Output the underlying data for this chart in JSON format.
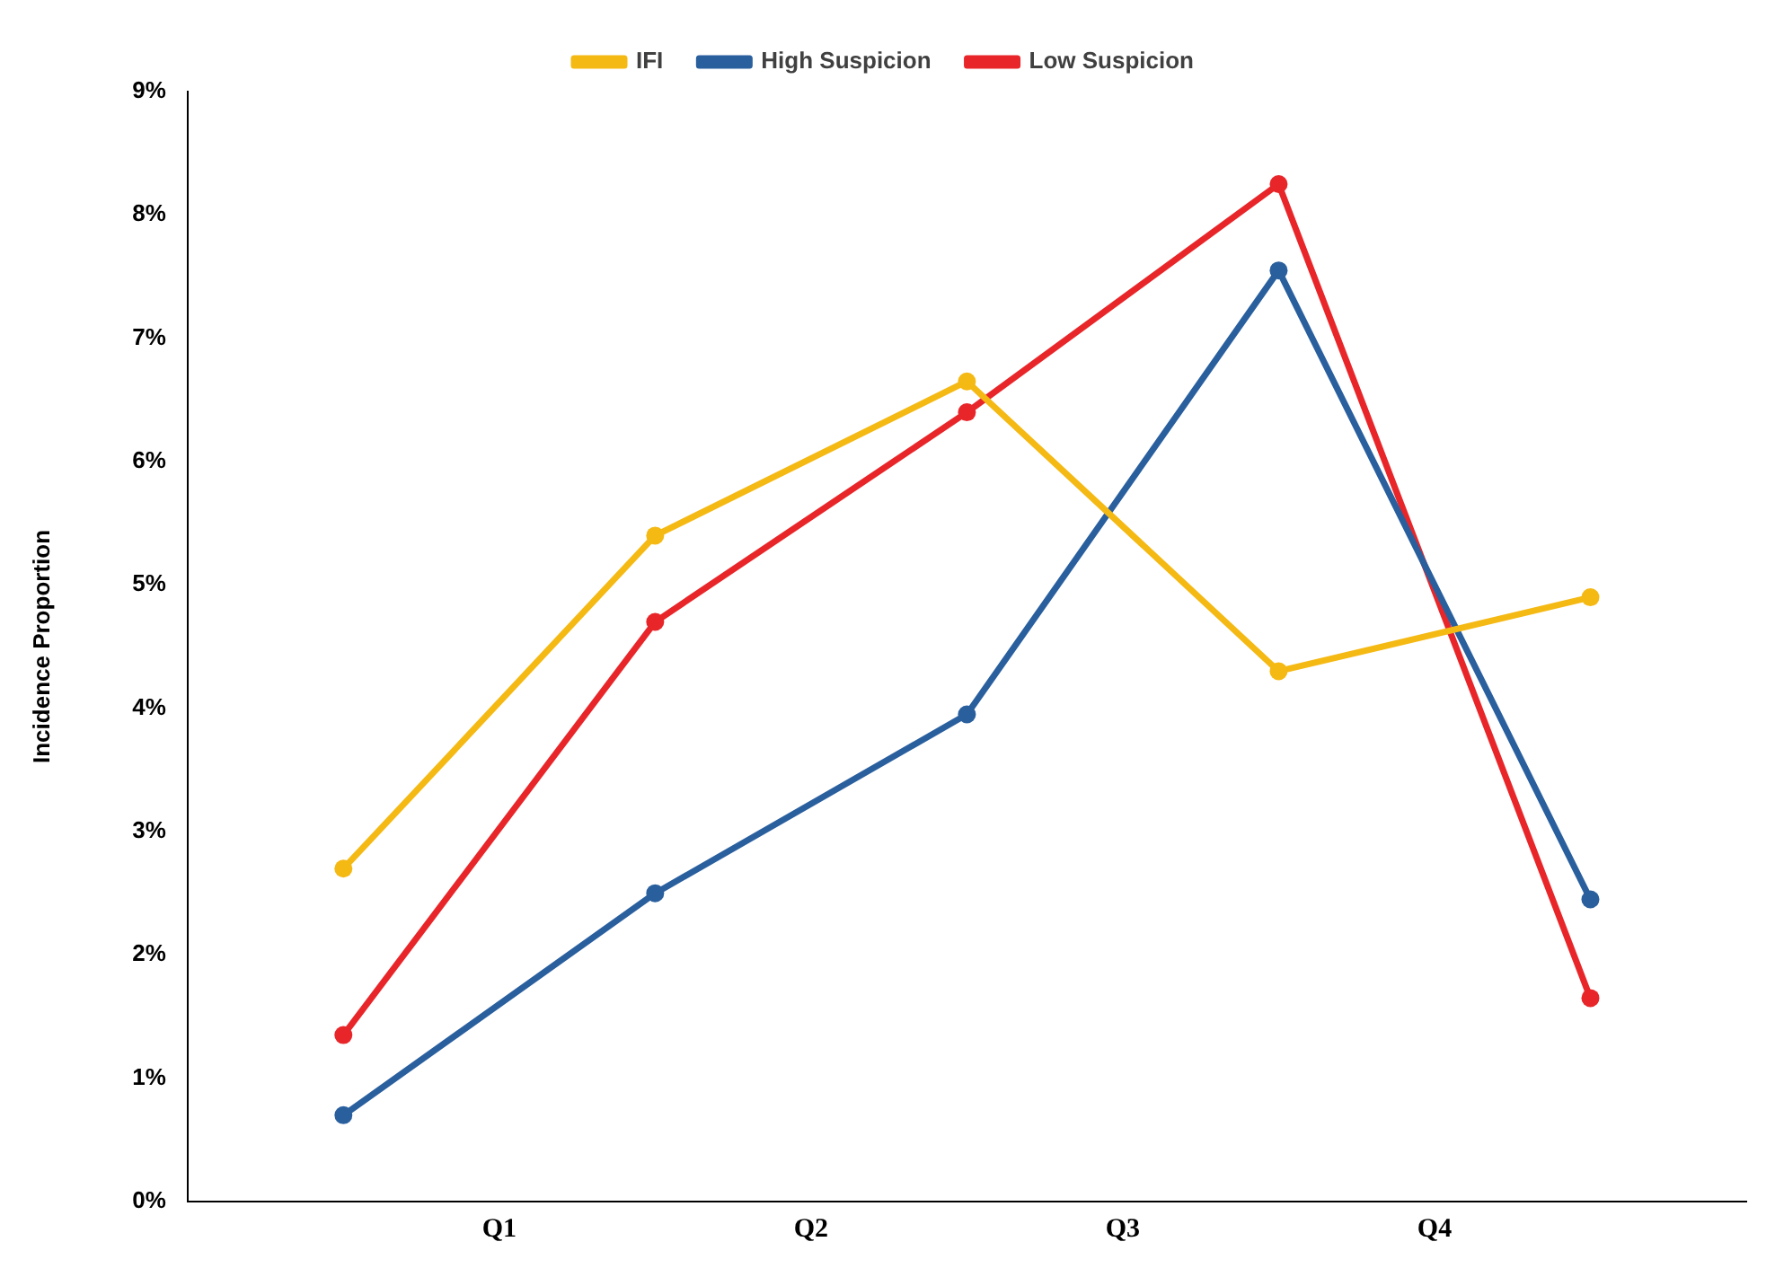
{
  "chart_data": {
    "type": "line",
    "ylabel": "Incidence Proportion",
    "categories": [
      null,
      null,
      null,
      null,
      null
    ],
    "annotations": [
      "Q1",
      "Q2",
      "Q3",
      "Q4"
    ],
    "ylim": [
      0,
      9
    ],
    "yticks": [
      {
        "value": 0,
        "label": "0%"
      },
      {
        "value": 1,
        "label": "1%"
      },
      {
        "value": 2,
        "label": "2%"
      },
      {
        "value": 3,
        "label": "3%"
      },
      {
        "value": 4,
        "label": "4%"
      },
      {
        "value": 5,
        "label": "5%"
      },
      {
        "value": 6,
        "label": "6%"
      },
      {
        "value": 7,
        "label": "7%"
      },
      {
        "value": 8,
        "label": "8%"
      },
      {
        "value": 9,
        "label": "9%"
      }
    ],
    "series": [
      {
        "name": "IFI",
        "color": "#f5b914",
        "values": [
          2.7,
          5.4,
          6.65,
          4.3,
          4.9
        ]
      },
      {
        "name": "High Suspicion",
        "color": "#2a5f9e",
        "values": [
          0.7,
          2.5,
          3.95,
          7.55,
          2.45
        ]
      },
      {
        "name": "Low Suspicion",
        "color": "#e8262a",
        "values": [
          1.35,
          4.7,
          6.4,
          8.25,
          1.65
        ]
      }
    ],
    "grid": false,
    "legend": "top",
    "marker": "circle",
    "line_style": "solid"
  }
}
